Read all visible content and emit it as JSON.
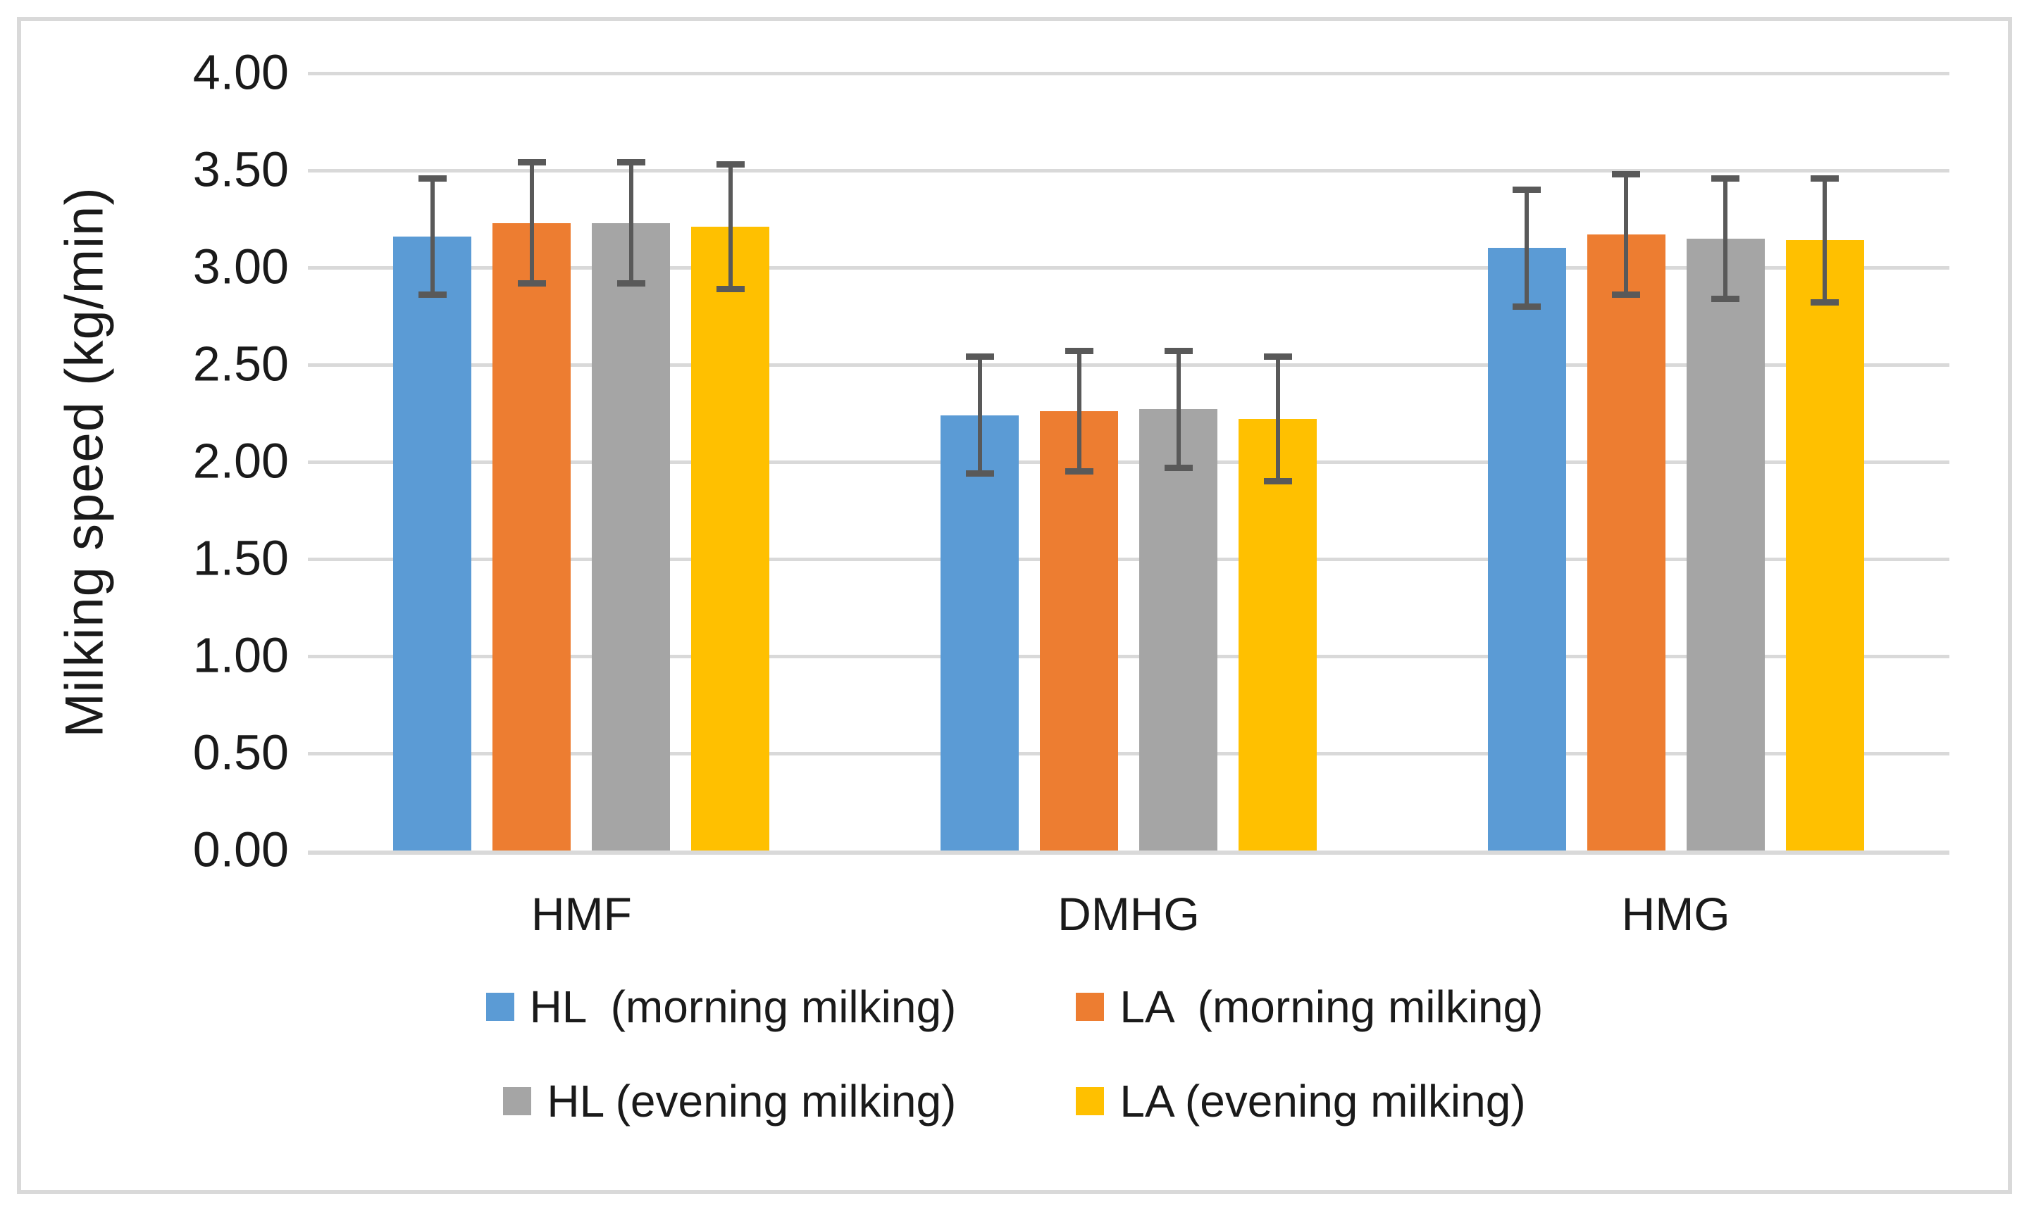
{
  "figure": {
    "background": "#FFFFFF",
    "border_color": "#D9D9D9",
    "gridline_color": "#D9D9D9",
    "axis_line_color": "#D9D9D9",
    "text_color": "#1A1A1A"
  },
  "chart_data": {
    "type": "bar",
    "title": "",
    "xlabel": "",
    "ylabel": "Milking speed (kg/min)",
    "ylim": [
      0,
      4
    ],
    "ytick_step": 0.5,
    "ytick_labels": [
      "0.00",
      "0.50",
      "1.00",
      "1.50",
      "2.00",
      "2.50",
      "3.00",
      "3.50",
      "4.00"
    ],
    "grid": true,
    "legend_position": "bottom",
    "error_bar_color": "#595959",
    "categories": [
      "HMF",
      "DMHG",
      "HMG"
    ],
    "series": [
      {
        "name": "HL  (morning milking)",
        "color": "#5B9BD5",
        "values": [
          3.16,
          2.24,
          3.1
        ],
        "errors": [
          0.3,
          0.3,
          0.3
        ]
      },
      {
        "name": "LA  (morning milking)",
        "color": "#ED7D31",
        "values": [
          3.23,
          2.26,
          3.17
        ],
        "errors": [
          0.31,
          0.31,
          0.31
        ]
      },
      {
        "name": "HL (evening milking)",
        "color": "#A5A5A5",
        "values": [
          3.23,
          2.27,
          3.15
        ],
        "errors": [
          0.31,
          0.3,
          0.31
        ]
      },
      {
        "name": "LA (evening milking)",
        "color": "#FFC000",
        "values": [
          3.21,
          2.22,
          3.14
        ],
        "errors": [
          0.32,
          0.32,
          0.32
        ]
      }
    ],
    "legend_rows": [
      [
        0,
        1
      ],
      [
        2,
        3
      ]
    ]
  }
}
